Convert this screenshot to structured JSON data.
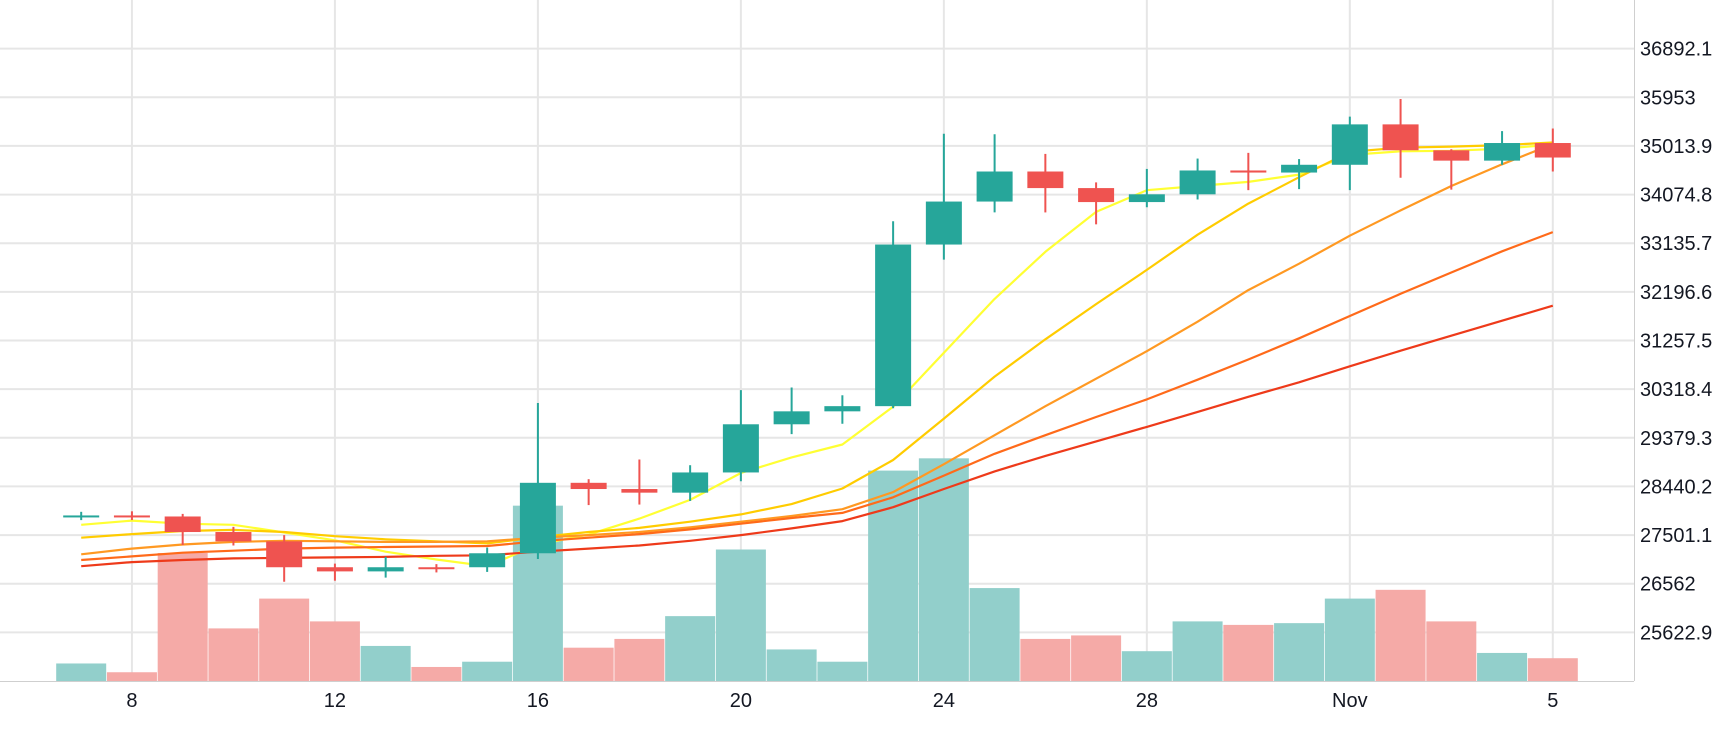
{
  "chart_data": {
    "type": "candlestick",
    "title": "",
    "xlabel": "",
    "ylabel": "",
    "ylim": [
      24683.8,
      37831.2
    ],
    "grid": true,
    "y_ticks": [
      "36892.1",
      "35953",
      "35013.9",
      "34074.8",
      "33135.7",
      "32196.6",
      "31257.5",
      "30318.4",
      "29379.3",
      "28440.2",
      "27501.1",
      "26562",
      "25622.9"
    ],
    "x_ticks": [
      {
        "label": "8",
        "day": 8
      },
      {
        "label": "12",
        "day": 12
      },
      {
        "label": "16",
        "day": 16
      },
      {
        "label": "20",
        "day": 20
      },
      {
        "label": "24",
        "day": 24
      },
      {
        "label": "28",
        "day": 28
      },
      {
        "label": "Nov",
        "day": 32
      },
      {
        "label": "5",
        "day": 36
      }
    ],
    "x_domain": [
      5.4,
      37.6
    ],
    "colors": {
      "up": "#26a69a",
      "down": "#ef5350",
      "volume_up": "#92cfcb",
      "volume_down": "#f5aaa7",
      "grid": "#e6e6e6",
      "ma": [
        "#ffff33",
        "#ffcc00",
        "#ff9922",
        "#ff6a1a",
        "#ee3a1a"
      ]
    },
    "candles": [
      {
        "day": 7,
        "open": 27880,
        "high": 27950,
        "low": 27790,
        "close": 27880
      },
      {
        "day": 8,
        "open": 27880,
        "high": 27960,
        "low": 27790,
        "close": 27870
      },
      {
        "day": 9,
        "open": 27860,
        "high": 27910,
        "low": 27310,
        "close": 27560
      },
      {
        "day": 10,
        "open": 27560,
        "high": 27660,
        "low": 27300,
        "close": 27380
      },
      {
        "day": 11,
        "open": 27380,
        "high": 27500,
        "low": 26600,
        "close": 26880
      },
      {
        "day": 12,
        "open": 26880,
        "high": 26950,
        "low": 26620,
        "close": 26800
      },
      {
        "day": 13,
        "open": 26800,
        "high": 27080,
        "low": 26680,
        "close": 26880
      },
      {
        "day": 14,
        "open": 26880,
        "high": 26940,
        "low": 26780,
        "close": 26860
      },
      {
        "day": 15,
        "open": 26880,
        "high": 27260,
        "low": 26790,
        "close": 27150
      },
      {
        "day": 16,
        "open": 27150,
        "high": 30050,
        "low": 27040,
        "close": 28510
      },
      {
        "day": 17,
        "open": 28510,
        "high": 28580,
        "low": 28080,
        "close": 28390
      },
      {
        "day": 18,
        "open": 28390,
        "high": 28960,
        "low": 28090,
        "close": 28320
      },
      {
        "day": 19,
        "open": 28320,
        "high": 28850,
        "low": 28160,
        "close": 28710
      },
      {
        "day": 20,
        "open": 28710,
        "high": 30300,
        "low": 28540,
        "close": 29640
      },
      {
        "day": 21,
        "open": 29640,
        "high": 30350,
        "low": 29450,
        "close": 29890
      },
      {
        "day": 22,
        "open": 29890,
        "high": 30200,
        "low": 29650,
        "close": 29990
      },
      {
        "day": 23,
        "open": 29990,
        "high": 33560,
        "low": 29950,
        "close": 33110
      },
      {
        "day": 24,
        "open": 33110,
        "high": 35250,
        "low": 32820,
        "close": 33940
      },
      {
        "day": 25,
        "open": 33940,
        "high": 35240,
        "low": 33730,
        "close": 34520
      },
      {
        "day": 26,
        "open": 34520,
        "high": 34860,
        "low": 33730,
        "close": 34200
      },
      {
        "day": 27,
        "open": 34200,
        "high": 34310,
        "low": 33500,
        "close": 33930
      },
      {
        "day": 28,
        "open": 33930,
        "high": 34570,
        "low": 33830,
        "close": 34080
      },
      {
        "day": 29,
        "open": 34080,
        "high": 34770,
        "low": 33980,
        "close": 34540
      },
      {
        "day": 30,
        "open": 34540,
        "high": 34880,
        "low": 34160,
        "close": 34500
      },
      {
        "day": 31,
        "open": 34500,
        "high": 34760,
        "low": 34180,
        "close": 34650
      },
      {
        "day": 32,
        "open": 34650,
        "high": 35580,
        "low": 34160,
        "close": 35430
      },
      {
        "day": 33,
        "open": 35430,
        "high": 35920,
        "low": 34400,
        "close": 34930
      },
      {
        "day": 34,
        "open": 34930,
        "high": 34950,
        "low": 34170,
        "close": 34730
      },
      {
        "day": 35,
        "open": 34730,
        "high": 35300,
        "low": 34650,
        "close": 35070
      },
      {
        "day": 36,
        "open": 35070,
        "high": 35350,
        "low": 34520,
        "close": 34790
      }
    ],
    "volume": [
      {
        "day": 7,
        "value": 0.1,
        "direction": "up"
      },
      {
        "day": 8,
        "value": 0.05,
        "direction": "down"
      },
      {
        "day": 9,
        "value": 0.73,
        "direction": "down"
      },
      {
        "day": 10,
        "value": 0.3,
        "direction": "down"
      },
      {
        "day": 11,
        "value": 0.47,
        "direction": "down"
      },
      {
        "day": 12,
        "value": 0.34,
        "direction": "down"
      },
      {
        "day": 13,
        "value": 0.2,
        "direction": "up"
      },
      {
        "day": 14,
        "value": 0.08,
        "direction": "down"
      },
      {
        "day": 15,
        "value": 0.11,
        "direction": "up"
      },
      {
        "day": 16,
        "value": 1.0,
        "direction": "up"
      },
      {
        "day": 17,
        "value": 0.19,
        "direction": "down"
      },
      {
        "day": 18,
        "value": 0.24,
        "direction": "down"
      },
      {
        "day": 19,
        "value": 0.37,
        "direction": "up"
      },
      {
        "day": 20,
        "value": 0.75,
        "direction": "up"
      },
      {
        "day": 21,
        "value": 0.18,
        "direction": "up"
      },
      {
        "day": 22,
        "value": 0.11,
        "direction": "up"
      },
      {
        "day": 23,
        "value": 1.2,
        "direction": "up"
      },
      {
        "day": 24,
        "value": 1.27,
        "direction": "up"
      },
      {
        "day": 25,
        "value": 0.53,
        "direction": "up"
      },
      {
        "day": 26,
        "value": 0.24,
        "direction": "down"
      },
      {
        "day": 27,
        "value": 0.26,
        "direction": "down"
      },
      {
        "day": 28,
        "value": 0.17,
        "direction": "up"
      },
      {
        "day": 29,
        "value": 0.34,
        "direction": "up"
      },
      {
        "day": 30,
        "value": 0.32,
        "direction": "down"
      },
      {
        "day": 31,
        "value": 0.33,
        "direction": "up"
      },
      {
        "day": 32,
        "value": 0.47,
        "direction": "up"
      },
      {
        "day": 33,
        "value": 0.52,
        "direction": "down"
      },
      {
        "day": 34,
        "value": 0.34,
        "direction": "down"
      },
      {
        "day": 35,
        "value": 0.16,
        "direction": "up"
      },
      {
        "day": 36,
        "value": 0.13,
        "direction": "down"
      }
    ],
    "volume_max": 1.5,
    "moving_averages": [
      {
        "color": "#ffff33",
        "x": [
          7,
          8,
          9,
          10,
          11,
          12,
          13,
          14,
          15,
          16,
          17,
          18,
          19,
          20,
          21,
          22,
          23,
          24,
          25,
          26,
          27,
          28,
          29,
          30,
          31,
          32,
          33,
          34,
          35,
          36
        ],
        "y": [
          27700,
          27780,
          27720,
          27700,
          27550,
          27400,
          27180,
          27030,
          26900,
          27320,
          27510,
          27820,
          28180,
          28700,
          29000,
          29250,
          29980,
          31020,
          32060,
          32970,
          33740,
          34160,
          34240,
          34320,
          34460,
          34840,
          34910,
          34920,
          34960,
          35040
        ]
      },
      {
        "color": "#ffcc00",
        "x": [
          7,
          8,
          9,
          10,
          11,
          12,
          13,
          14,
          15,
          16,
          17,
          18,
          19,
          20,
          21,
          22,
          23,
          24,
          25,
          26,
          27,
          28,
          29,
          30,
          31,
          32,
          33,
          34,
          35,
          36
        ],
        "y": [
          27450,
          27520,
          27580,
          27600,
          27560,
          27480,
          27420,
          27380,
          27340,
          27460,
          27560,
          27640,
          27760,
          27900,
          28100,
          28400,
          28950,
          29750,
          30560,
          31280,
          31960,
          32620,
          33300,
          33900,
          34410,
          34900,
          34980,
          35000,
          35030,
          35080
        ]
      },
      {
        "color": "#ff9922",
        "x": [
          7,
          8,
          9,
          10,
          11,
          12,
          13,
          14,
          15,
          16,
          17,
          18,
          19,
          20,
          21,
          22,
          23,
          24,
          25,
          26,
          27,
          28,
          29,
          30,
          31,
          32,
          33,
          34,
          35,
          36
        ],
        "y": [
          27130,
          27240,
          27320,
          27370,
          27390,
          27380,
          27370,
          27370,
          27380,
          27450,
          27500,
          27560,
          27650,
          27760,
          27870,
          28000,
          28330,
          28870,
          29430,
          29990,
          30520,
          31050,
          31620,
          32230,
          32740,
          33280,
          33770,
          34240,
          34660,
          35050
        ]
      },
      {
        "color": "#ff6a1a",
        "x": [
          7,
          8,
          9,
          10,
          11,
          12,
          13,
          14,
          15,
          16,
          17,
          18,
          19,
          20,
          21,
          22,
          23,
          24,
          25,
          26,
          27,
          28,
          29,
          30,
          31,
          32,
          33,
          34,
          35,
          36
        ],
        "y": [
          27020,
          27090,
          27160,
          27200,
          27240,
          27260,
          27270,
          27280,
          27290,
          27380,
          27450,
          27520,
          27610,
          27720,
          27830,
          27930,
          28230,
          28650,
          29070,
          29430,
          29780,
          30120,
          30500,
          30890,
          31300,
          31730,
          32160,
          32570,
          32980,
          33350
        ]
      },
      {
        "color": "#ee3a1a",
        "x": [
          7,
          8,
          9,
          10,
          11,
          12,
          13,
          14,
          15,
          16,
          17,
          18,
          19,
          20,
          21,
          22,
          23,
          24,
          25,
          26,
          27,
          28,
          29,
          30,
          31,
          32,
          33,
          34,
          35,
          36
        ],
        "y": [
          26900,
          26980,
          27020,
          27050,
          27060,
          27070,
          27080,
          27100,
          27110,
          27180,
          27240,
          27300,
          27390,
          27500,
          27630,
          27770,
          28040,
          28390,
          28730,
          29030,
          29310,
          29590,
          29880,
          30170,
          30450,
          30760,
          31060,
          31350,
          31640,
          31930
        ]
      }
    ]
  }
}
